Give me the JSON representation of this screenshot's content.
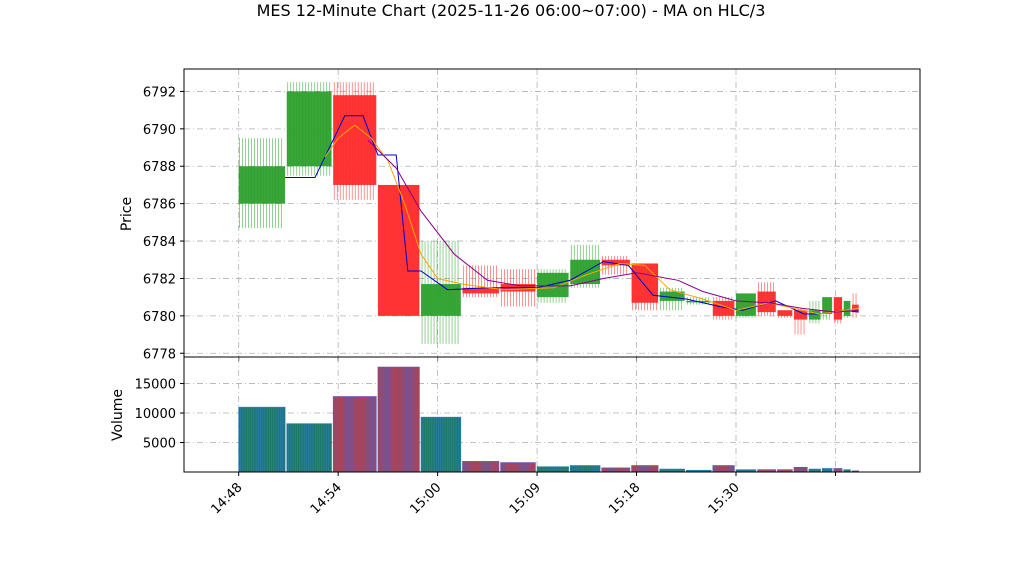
{
  "chart_data": {
    "type": "candlestick",
    "title": "MES 12-Minute Chart (2025-11-26 06:00~07:00) - MA on HLC/3",
    "price_panel": {
      "ylabel": "Price",
      "ylim": [
        6777.8,
        6793.2
      ],
      "yticks": [
        6778,
        6780,
        6782,
        6784,
        6786,
        6788,
        6790,
        6792
      ],
      "grid": true
    },
    "volume_panel": {
      "ylabel": "Volume",
      "ylim": [
        0,
        19500
      ],
      "yticks": [
        5000,
        10000,
        15000
      ],
      "grid": true
    },
    "x": {
      "range_minutes": [
        -3.3,
        41.1
      ],
      "ticks": [
        {
          "label": "14:48",
          "t": 0
        },
        {
          "label": "14:54",
          "t": 6
        },
        {
          "label": "15:00",
          "t": 12
        },
        {
          "label": "15:09",
          "t": 18
        },
        {
          "label": "15:18",
          "t": 24
        },
        {
          "label": "15:30",
          "t": 30
        },
        {
          "label": "",
          "t": 36
        }
      ]
    },
    "colors": {
      "up": "#2ca02c",
      "down": "#ff2a2a",
      "volume_up": "#1f7a6a",
      "volume_down": "#a8455e",
      "volume_edge_up": "#2c7fb8",
      "volume_edge_down": "#5b58a8",
      "ma_fast": "#ffa500",
      "ma_mid": "#0000cd",
      "ma_slow": "#8b008b"
    },
    "candles": [
      {
        "t0": 0.0,
        "t1": 2.8,
        "open": 6786.0,
        "close": 6788.0,
        "high": 6789.5,
        "low": 6784.7,
        "volume": 11000
      },
      {
        "t0": 2.9,
        "t1": 5.6,
        "open": 6788.0,
        "close": 6792.0,
        "high": 6792.5,
        "low": 6787.5,
        "volume": 8200
      },
      {
        "t0": 5.7,
        "t1": 8.3,
        "open": 6791.8,
        "close": 6787.0,
        "high": 6792.5,
        "low": 6786.2,
        "volume": 12800
      },
      {
        "t0": 8.4,
        "t1": 10.9,
        "open": 6787.0,
        "close": 6780.0,
        "high": 6787.0,
        "low": 6780.0,
        "volume": 17800
      },
      {
        "t0": 11.0,
        "t1": 13.4,
        "open": 6780.0,
        "close": 6781.7,
        "high": 6784.0,
        "low": 6778.5,
        "volume": 9300
      },
      {
        "t0": 13.5,
        "t1": 15.7,
        "open": 6781.5,
        "close": 6781.2,
        "high": 6782.7,
        "low": 6781.0,
        "volume": 1800
      },
      {
        "t0": 15.8,
        "t1": 17.9,
        "open": 6781.7,
        "close": 6781.3,
        "high": 6782.5,
        "low": 6780.5,
        "volume": 1600
      },
      {
        "t0": 18.0,
        "t1": 19.9,
        "open": 6781.0,
        "close": 6782.3,
        "high": 6782.5,
        "low": 6780.7,
        "volume": 900
      },
      {
        "t0": 20.0,
        "t1": 21.8,
        "open": 6781.7,
        "close": 6783.0,
        "high": 6783.8,
        "low": 6781.5,
        "volume": 1100
      },
      {
        "t0": 21.9,
        "t1": 23.6,
        "open": 6783.0,
        "close": 6782.7,
        "high": 6783.2,
        "low": 6782.2,
        "volume": 700
      },
      {
        "t0": 23.7,
        "t1": 25.3,
        "open": 6782.8,
        "close": 6780.7,
        "high": 6782.8,
        "low": 6780.3,
        "volume": 1100
      },
      {
        "t0": 25.4,
        "t1": 26.9,
        "open": 6780.8,
        "close": 6781.3,
        "high": 6781.5,
        "low": 6780.3,
        "volume": 500
      },
      {
        "t0": 27.0,
        "t1": 28.5,
        "open": 6780.8,
        "close": 6780.8,
        "high": 6781.0,
        "low": 6780.6,
        "volume": 300
      },
      {
        "t0": 28.6,
        "t1": 29.9,
        "open": 6780.8,
        "close": 6780.0,
        "high": 6781.0,
        "low": 6779.8,
        "volume": 1100
      },
      {
        "t0": 30.0,
        "t1": 31.2,
        "open": 6780.0,
        "close": 6781.2,
        "high": 6781.2,
        "low": 6779.9,
        "volume": 400
      },
      {
        "t0": 31.3,
        "t1": 32.4,
        "open": 6781.3,
        "close": 6780.2,
        "high": 6781.8,
        "low": 6780.0,
        "volume": 400
      },
      {
        "t0": 32.5,
        "t1": 33.4,
        "open": 6780.3,
        "close": 6780.0,
        "high": 6780.3,
        "low": 6779.9,
        "volume": 400
      },
      {
        "t0": 33.5,
        "t1": 34.3,
        "open": 6780.3,
        "close": 6779.8,
        "high": 6780.4,
        "low": 6779.0,
        "volume": 800
      },
      {
        "t0": 34.4,
        "t1": 35.1,
        "open": 6779.8,
        "close": 6780.3,
        "high": 6780.8,
        "low": 6779.6,
        "volume": 500
      },
      {
        "t0": 35.2,
        "t1": 35.8,
        "open": 6780.1,
        "close": 6781.0,
        "high": 6781.0,
        "low": 6779.8,
        "volume": 600
      },
      {
        "t0": 35.9,
        "t1": 36.4,
        "open": 6781.0,
        "close": 6779.8,
        "high": 6781.0,
        "low": 6779.6,
        "volume": 600
      },
      {
        "t0": 36.5,
        "t1": 36.9,
        "open": 6780.0,
        "close": 6780.8,
        "high": 6780.8,
        "low": 6779.9,
        "volume": 400
      },
      {
        "t0": 37.0,
        "t1": 37.4,
        "open": 6780.6,
        "close": 6780.2,
        "high": 6781.2,
        "low": 6779.9,
        "volume": 200
      }
    ],
    "ma_lines": [
      {
        "color": "ma_mid",
        "points": [
          [
            2.8,
            6787.4
          ],
          [
            4.6,
            6787.4
          ],
          [
            6.4,
            6790.7
          ],
          [
            7.5,
            6790.7
          ],
          [
            8.4,
            6788.6
          ],
          [
            9.5,
            6788.6
          ],
          [
            10.2,
            6782.4
          ],
          [
            11.0,
            6782.4
          ],
          [
            12.6,
            6781.4
          ],
          [
            15.0,
            6781.5
          ],
          [
            18.0,
            6781.5
          ],
          [
            20.0,
            6781.9
          ],
          [
            22.0,
            6782.9
          ],
          [
            23.5,
            6782.7
          ],
          [
            25.0,
            6781.1
          ],
          [
            27.0,
            6780.9
          ],
          [
            29.0,
            6780.5
          ],
          [
            30.4,
            6780.3
          ],
          [
            32.4,
            6780.8
          ],
          [
            34.1,
            6780.1
          ],
          [
            35.0,
            6780.1
          ],
          [
            36.5,
            6780.3
          ],
          [
            37.4,
            6780.2
          ]
        ]
      },
      {
        "color": "ma_fast",
        "points": [
          [
            5.2,
            6788.5
          ],
          [
            6.0,
            6789.5
          ],
          [
            7.0,
            6790.2
          ],
          [
            8.0,
            6789.5
          ],
          [
            9.0,
            6788.3
          ],
          [
            10.0,
            6786.0
          ],
          [
            11.0,
            6783.3
          ],
          [
            12.0,
            6782.0
          ],
          [
            13.5,
            6781.7
          ],
          [
            16.0,
            6781.4
          ],
          [
            19.0,
            6781.5
          ],
          [
            21.0,
            6782.2
          ],
          [
            23.0,
            6782.8
          ],
          [
            24.5,
            6782.7
          ],
          [
            26.0,
            6781.4
          ],
          [
            28.0,
            6780.9
          ],
          [
            30.0,
            6780.3
          ],
          [
            32.0,
            6780.7
          ],
          [
            34.0,
            6780.3
          ],
          [
            35.0,
            6780.1
          ],
          [
            37.4,
            6780.4
          ]
        ]
      },
      {
        "color": "ma_slow",
        "points": [
          [
            7.8,
            6789.4
          ],
          [
            9.5,
            6787.9
          ],
          [
            11.0,
            6785.6
          ],
          [
            13.0,
            6783.3
          ],
          [
            15.0,
            6781.9
          ],
          [
            17.0,
            6781.6
          ],
          [
            20.0,
            6781.6
          ],
          [
            22.0,
            6782.0
          ],
          [
            24.0,
            6782.3
          ],
          [
            26.5,
            6781.9
          ],
          [
            28.0,
            6781.3
          ],
          [
            30.0,
            6780.8
          ],
          [
            32.0,
            6780.7
          ],
          [
            34.0,
            6780.4
          ],
          [
            36.0,
            6780.2
          ],
          [
            37.4,
            6780.3
          ]
        ]
      }
    ]
  }
}
